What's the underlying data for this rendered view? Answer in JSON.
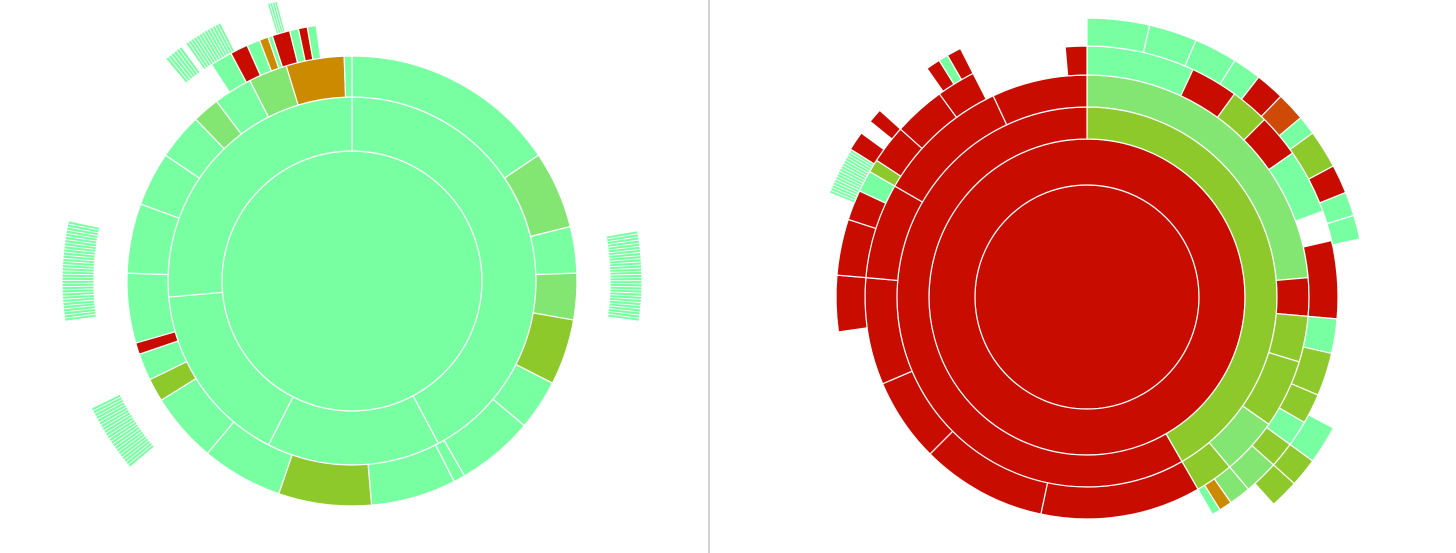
{
  "colors": {
    "mint": "#78ffa2",
    "light_green": "#84e672",
    "green": "#8ec92c",
    "red": "#c80c00",
    "dark_orange": "#d04a07",
    "orange": "#cc8a00",
    "divider": "#d2d2d2"
  },
  "chart_data": [
    {
      "type": "sunburst",
      "name": "left",
      "rings": [
        {
          "segments": [
            {
              "start": 0,
              "end": 360,
              "color": "mint"
            }
          ]
        },
        {
          "segments": [
            {
              "start": 0,
              "end": 152,
              "color": "mint"
            },
            {
              "start": 152,
              "end": 207,
              "color": "mint"
            },
            {
              "start": 207,
              "end": 265,
              "color": "mint"
            },
            {
              "start": 265,
              "end": 360,
              "color": "mint"
            }
          ]
        },
        {
          "segments": [
            {
              "start": 0,
              "end": 56,
              "color": "mint"
            },
            {
              "start": 56,
              "end": 76,
              "color": "light_green"
            },
            {
              "start": 76,
              "end": 88,
              "color": "mint"
            },
            {
              "start": 88,
              "end": 100,
              "color": "light_green"
            },
            {
              "start": 100,
              "end": 117,
              "color": "green"
            },
            {
              "start": 117,
              "end": 130,
              "color": "mint"
            },
            {
              "start": 130,
              "end": 150,
              "color": "mint"
            },
            {
              "start": 150,
              "end": 153,
              "color": "mint"
            },
            {
              "start": 153,
              "end": 175,
              "color": "mint"
            },
            {
              "start": 175,
              "end": 199,
              "color": "green"
            },
            {
              "start": 199,
              "end": 220,
              "color": "mint"
            },
            {
              "start": 220,
              "end": 238,
              "color": "mint"
            },
            {
              "start": 238,
              "end": 244,
              "color": "green"
            },
            {
              "start": 244,
              "end": 251,
              "color": "mint"
            },
            {
              "start": 251,
              "end": 254,
              "color": "red"
            },
            {
              "start": 254,
              "end": 272,
              "color": "mint"
            },
            {
              "start": 272,
              "end": 290,
              "color": "mint"
            },
            {
              "start": 290,
              "end": 304,
              "color": "mint"
            },
            {
              "start": 304,
              "end": 316,
              "color": "mint"
            },
            {
              "start": 316,
              "end": 323,
              "color": "light_green"
            },
            {
              "start": 323,
              "end": 333,
              "color": "mint"
            },
            {
              "start": 333,
              "end": 343,
              "color": "light_green"
            },
            {
              "start": 343,
              "end": 358,
              "color": "orange"
            },
            {
              "start": 358,
              "end": 360,
              "color": "mint"
            }
          ]
        },
        {
          "segments": [
            {
              "start": 327,
              "end": 332,
              "color": "mint"
            },
            {
              "start": 332,
              "end": 336,
              "color": "red"
            },
            {
              "start": 336,
              "end": 339,
              "color": "mint"
            },
            {
              "start": 339,
              "end": 341,
              "color": "orange"
            },
            {
              "start": 341,
              "end": 342,
              "color": "mint"
            },
            {
              "start": 342,
              "end": 346,
              "color": "red"
            },
            {
              "start": 346,
              "end": 348,
              "color": "mint"
            },
            {
              "start": 348,
              "end": 350,
              "color": "red"
            },
            {
              "start": 350,
              "end": 352,
              "color": "mint"
            }
          ]
        }
      ],
      "spikes": [
        {
          "start": 80,
          "end": 98
        },
        {
          "start": 230,
          "end": 244
        },
        {
          "start": 262,
          "end": 282
        },
        {
          "start": 320,
          "end": 324
        },
        {
          "start": 325,
          "end": 333
        },
        {
          "start": 343,
          "end": 345
        }
      ]
    },
    {
      "type": "sunburst",
      "name": "right",
      "rings": [
        {
          "segments": [
            {
              "start": 0,
              "end": 360,
              "color": "red"
            }
          ]
        },
        {
          "segments": [
            {
              "start": 0,
              "end": 360,
              "color": "red"
            }
          ]
        },
        {
          "segments": [
            {
              "start": 0,
              "end": 150,
              "color": "green"
            },
            {
              "start": 150,
              "end": 360,
              "color": "red"
            }
          ]
        },
        {
          "segments": [
            {
              "start": 0,
              "end": 85,
              "color": "light_green"
            },
            {
              "start": 85,
              "end": 95,
              "color": "red"
            },
            {
              "start": 95,
              "end": 107,
              "color": "green"
            },
            {
              "start": 107,
              "end": 125,
              "color": "green"
            },
            {
              "start": 125,
              "end": 140,
              "color": "light_green"
            },
            {
              "start": 140,
              "end": 150,
              "color": "green"
            },
            {
              "start": 150,
              "end": 192,
              "color": "red"
            },
            {
              "start": 192,
              "end": 225,
              "color": "red"
            },
            {
              "start": 225,
              "end": 247,
              "color": "red"
            },
            {
              "start": 247,
              "end": 275,
              "color": "red"
            },
            {
              "start": 275,
              "end": 300,
              "color": "red"
            },
            {
              "start": 300,
              "end": 335,
              "color": "red"
            },
            {
              "start": 335,
              "end": 360,
              "color": "red"
            }
          ]
        },
        {
          "segments": [
            {
              "start": 0,
              "end": 25,
              "color": "mint"
            },
            {
              "start": 25,
              "end": 36,
              "color": "red"
            },
            {
              "start": 36,
              "end": 45,
              "color": "green"
            },
            {
              "start": 45,
              "end": 55,
              "color": "red"
            },
            {
              "start": 55,
              "end": 70,
              "color": "mint"
            },
            {
              "start": 77,
              "end": 95,
              "color": "red"
            },
            {
              "start": 95,
              "end": 103,
              "color": "mint"
            },
            {
              "start": 103,
              "end": 113,
              "color": "green"
            },
            {
              "start": 113,
              "end": 120,
              "color": "green"
            },
            {
              "start": 120,
              "end": 126,
              "color": "mint"
            },
            {
              "start": 126,
              "end": 132,
              "color": "green"
            },
            {
              "start": 132,
              "end": 140,
              "color": "light_green"
            },
            {
              "start": 140,
              "end": 145,
              "color": "light_green"
            },
            {
              "start": 145,
              "end": 148,
              "color": "orange"
            },
            {
              "start": 148,
              "end": 150,
              "color": "mint"
            },
            {
              "start": 262,
              "end": 275,
              "color": "red"
            },
            {
              "start": 275,
              "end": 288,
              "color": "red"
            },
            {
              "start": 288,
              "end": 295,
              "color": "red"
            },
            {
              "start": 295,
              "end": 300,
              "color": "mint"
            },
            {
              "start": 300,
              "end": 303,
              "color": "green"
            },
            {
              "start": 303,
              "end": 312,
              "color": "red"
            },
            {
              "start": 312,
              "end": 324,
              "color": "red"
            },
            {
              "start": 324,
              "end": 333,
              "color": "red"
            },
            {
              "start": 355,
              "end": 360,
              "color": "red"
            }
          ]
        },
        {
          "segments": [
            {
              "start": 0,
              "end": 13,
              "color": "mint"
            },
            {
              "start": 13,
              "end": 23,
              "color": "mint"
            },
            {
              "start": 23,
              "end": 32,
              "color": "mint"
            },
            {
              "start": 32,
              "end": 38,
              "color": "mint"
            },
            {
              "start": 38,
              "end": 44,
              "color": "red"
            },
            {
              "start": 44,
              "end": 50,
              "color": "dark_orange"
            },
            {
              "start": 50,
              "end": 54,
              "color": "mint"
            },
            {
              "start": 54,
              "end": 62,
              "color": "green"
            },
            {
              "start": 62,
              "end": 68,
              "color": "red"
            },
            {
              "start": 68,
              "end": 73,
              "color": "mint"
            },
            {
              "start": 73,
              "end": 78,
              "color": "mint"
            },
            {
              "start": 118,
              "end": 126,
              "color": "mint"
            },
            {
              "start": 126,
              "end": 132,
              "color": "green"
            },
            {
              "start": 132,
              "end": 138,
              "color": "green"
            },
            {
              "start": 302,
              "end": 306,
              "color": "red"
            },
            {
              "start": 309,
              "end": 312,
              "color": "red"
            },
            {
              "start": 325,
              "end": 328,
              "color": "red"
            },
            {
              "start": 328,
              "end": 330,
              "color": "mint"
            },
            {
              "start": 330,
              "end": 333,
              "color": "red"
            }
          ]
        }
      ],
      "spikes": [
        {
          "start": 292,
          "end": 302
        }
      ]
    }
  ]
}
